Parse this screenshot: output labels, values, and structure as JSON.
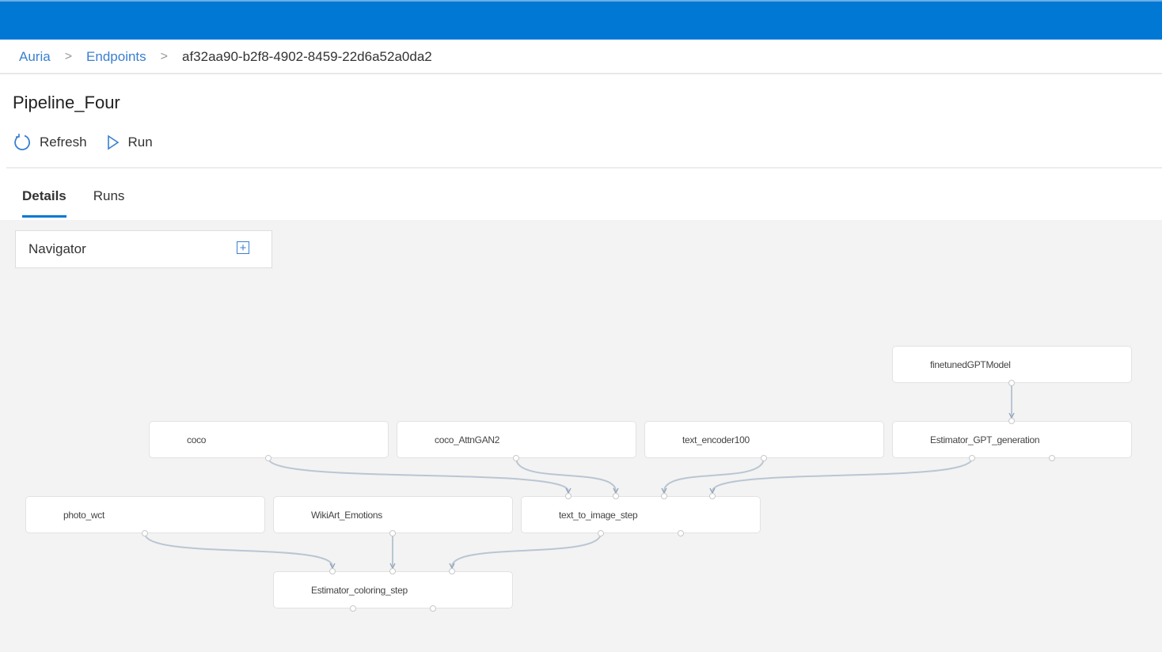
{
  "breadcrumb": [
    "Auria",
    "Endpoints",
    "af32aa90-b2f8-4902-8459-22d6a52a0da2"
  ],
  "page_title": "Pipeline_Four",
  "toolbar": {
    "refresh": "Refresh",
    "run": "Run"
  },
  "tabs": [
    {
      "label": "Details",
      "active": true
    },
    {
      "label": "Runs",
      "active": false
    }
  ],
  "navigator": {
    "label": "Navigator",
    "icon": "plus-square-icon"
  },
  "colors": {
    "accent": "#0078d4",
    "edge": "#b9c6d3",
    "canvas": "#f3f3f3"
  },
  "nodes": [
    {
      "id": "finetunedGPTModel",
      "label": "finetunedGPTModel"
    },
    {
      "id": "coco",
      "label": "coco"
    },
    {
      "id": "coco_AttnGAN2",
      "label": "coco_AttnGAN2"
    },
    {
      "id": "text_encoder100",
      "label": "text_encoder100"
    },
    {
      "id": "Estimator_GPT_generation",
      "label": "Estimator_GPT_generation"
    },
    {
      "id": "photo_wct",
      "label": "photo_wct"
    },
    {
      "id": "WikiArt_Emotions",
      "label": "WikiArt_Emotions"
    },
    {
      "id": "text_to_image_step",
      "label": "text_to_image_step"
    },
    {
      "id": "Estimator_coloring_step",
      "label": "Estimator_coloring_step"
    }
  ],
  "edges": [
    [
      "finetunedGPTModel",
      "Estimator_GPT_generation"
    ],
    [
      "coco",
      "text_to_image_step"
    ],
    [
      "coco_AttnGAN2",
      "text_to_image_step"
    ],
    [
      "text_encoder100",
      "text_to_image_step"
    ],
    [
      "Estimator_GPT_generation",
      "text_to_image_step"
    ],
    [
      "photo_wct",
      "Estimator_coloring_step"
    ],
    [
      "WikiArt_Emotions",
      "Estimator_coloring_step"
    ],
    [
      "text_to_image_step",
      "Estimator_coloring_step"
    ]
  ]
}
